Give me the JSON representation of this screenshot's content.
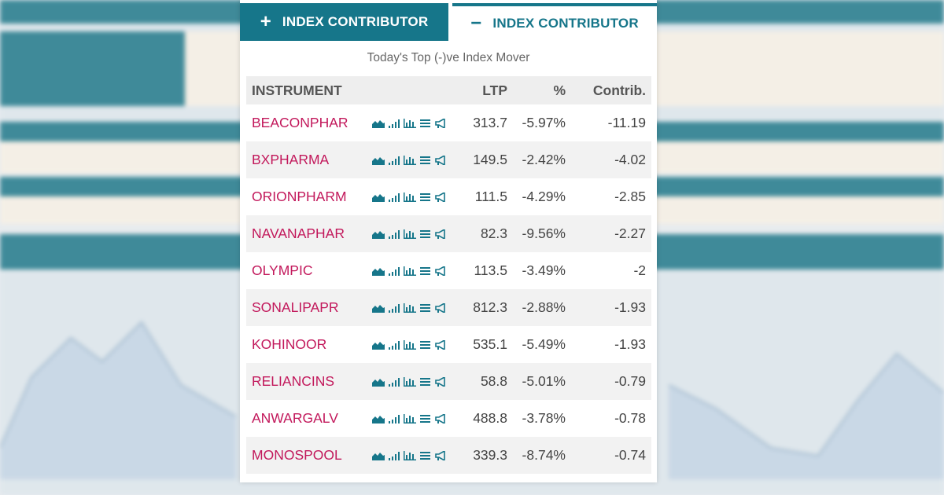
{
  "tabs": [
    {
      "symbol": "+",
      "label": "INDEX CONTRIBUTOR"
    },
    {
      "symbol": "−",
      "label": "INDEX CONTRIBUTOR"
    }
  ],
  "subtitle": "Today's Top (-)ve Index Mover",
  "table": {
    "headers": {
      "instrument": "INSTRUMENT",
      "ltp": "LTP",
      "pct": "%",
      "contrib": "Contrib."
    },
    "rows": [
      {
        "name": "BEACONPHAR",
        "ltp": "313.7",
        "pct": "-5.97%",
        "contrib": "-11.19"
      },
      {
        "name": "BXPHARMA",
        "ltp": "149.5",
        "pct": "-2.42%",
        "contrib": "-4.02"
      },
      {
        "name": "ORIONPHARM",
        "ltp": "111.5",
        "pct": "-4.29%",
        "contrib": "-2.85"
      },
      {
        "name": "NAVANAPHAR",
        "ltp": "82.3",
        "pct": "-9.56%",
        "contrib": "-2.27"
      },
      {
        "name": "OLYMPIC",
        "ltp": "113.5",
        "pct": "-3.49%",
        "contrib": "-2"
      },
      {
        "name": "SONALIPAPR",
        "ltp": "812.3",
        "pct": "-2.88%",
        "contrib": "-1.93"
      },
      {
        "name": "KOHINOOR",
        "ltp": "535.1",
        "pct": "-5.49%",
        "contrib": "-1.93"
      },
      {
        "name": "RELIANCINS",
        "ltp": "58.8",
        "pct": "-5.01%",
        "contrib": "-0.79"
      },
      {
        "name": "ANWARGALV",
        "ltp": "488.8",
        "pct": "-3.78%",
        "contrib": "-0.78"
      },
      {
        "name": "MONOSPOOL",
        "ltp": "339.3",
        "pct": "-8.74%",
        "contrib": "-0.74"
      }
    ],
    "row_icons": [
      "area-chart-icon",
      "signal-bars-icon",
      "bar-chart-icon",
      "list-icon",
      "megaphone-icon"
    ]
  },
  "colors": {
    "accent": "#16768a",
    "instrument_link": "#c2185b"
  }
}
